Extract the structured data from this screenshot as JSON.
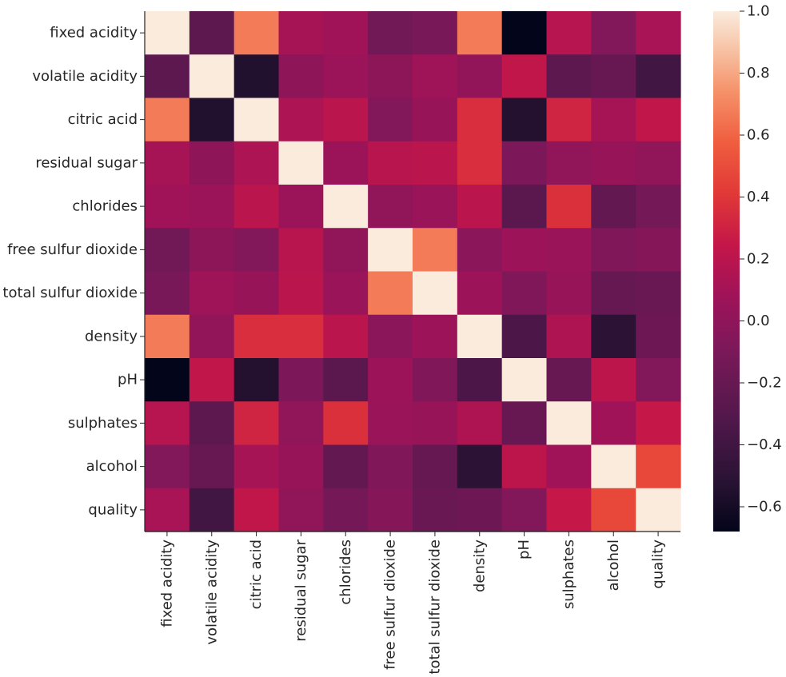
{
  "chart_data": {
    "type": "heatmap",
    "title": "",
    "xlabel": "",
    "ylabel": "",
    "variables": [
      "fixed acidity",
      "volatile acidity",
      "citric acid",
      "residual sugar",
      "chlorides",
      "free sulfur dioxide",
      "total sulfur dioxide",
      "density",
      "pH",
      "sulphates",
      "alcohol",
      "quality"
    ],
    "matrix": [
      [
        1.0,
        -0.26,
        0.67,
        0.11,
        0.09,
        -0.15,
        -0.11,
        0.67,
        -0.68,
        0.18,
        -0.06,
        0.12
      ],
      [
        -0.26,
        1.0,
        -0.55,
        0.0,
        0.06,
        -0.01,
        0.08,
        0.02,
        0.23,
        -0.26,
        -0.2,
        -0.39
      ],
      [
        0.67,
        -0.55,
        1.0,
        0.14,
        0.2,
        -0.06,
        0.04,
        0.36,
        -0.54,
        0.31,
        0.11,
        0.23
      ],
      [
        0.11,
        0.0,
        0.14,
        1.0,
        0.06,
        0.19,
        0.2,
        0.36,
        -0.09,
        0.01,
        0.04,
        0.01
      ],
      [
        0.09,
        0.06,
        0.2,
        0.06,
        1.0,
        0.01,
        0.05,
        0.2,
        -0.27,
        0.37,
        -0.22,
        -0.13
      ],
      [
        -0.15,
        -0.01,
        -0.06,
        0.19,
        0.01,
        1.0,
        0.67,
        -0.02,
        0.07,
        0.05,
        -0.07,
        -0.05
      ],
      [
        -0.11,
        0.08,
        0.04,
        0.2,
        0.05,
        0.67,
        1.0,
        0.07,
        -0.07,
        0.04,
        -0.21,
        -0.19
      ],
      [
        0.67,
        0.02,
        0.36,
        0.36,
        0.2,
        -0.02,
        0.07,
        1.0,
        -0.34,
        0.15,
        -0.5,
        -0.17
      ],
      [
        -0.68,
        0.23,
        -0.54,
        -0.09,
        -0.27,
        0.07,
        -0.07,
        -0.34,
        1.0,
        -0.2,
        0.21,
        -0.06
      ],
      [
        0.18,
        -0.26,
        0.31,
        0.01,
        0.37,
        0.05,
        0.04,
        0.15,
        -0.2,
        1.0,
        0.09,
        0.25
      ],
      [
        -0.06,
        -0.2,
        0.11,
        0.04,
        -0.22,
        -0.07,
        -0.21,
        -0.5,
        0.21,
        0.09,
        1.0,
        0.48
      ],
      [
        0.12,
        -0.39,
        0.23,
        0.01,
        -0.13,
        -0.05,
        -0.19,
        -0.17,
        -0.06,
        0.25,
        0.48,
        1.0
      ]
    ],
    "vmin": -0.68,
    "vmax": 1.0,
    "colormap": "rocket",
    "colorbar_ticks": [
      1.0,
      0.8,
      0.6,
      0.4,
      0.2,
      0.0,
      -0.2,
      -0.4,
      -0.6
    ],
    "colorbar_tick_labels": [
      "1.0",
      "0.8",
      "0.6",
      "0.4",
      "0.2",
      "0.0",
      "−0.2",
      "−0.4",
      "−0.6"
    ],
    "colorbar_position": "right",
    "grid": false
  }
}
